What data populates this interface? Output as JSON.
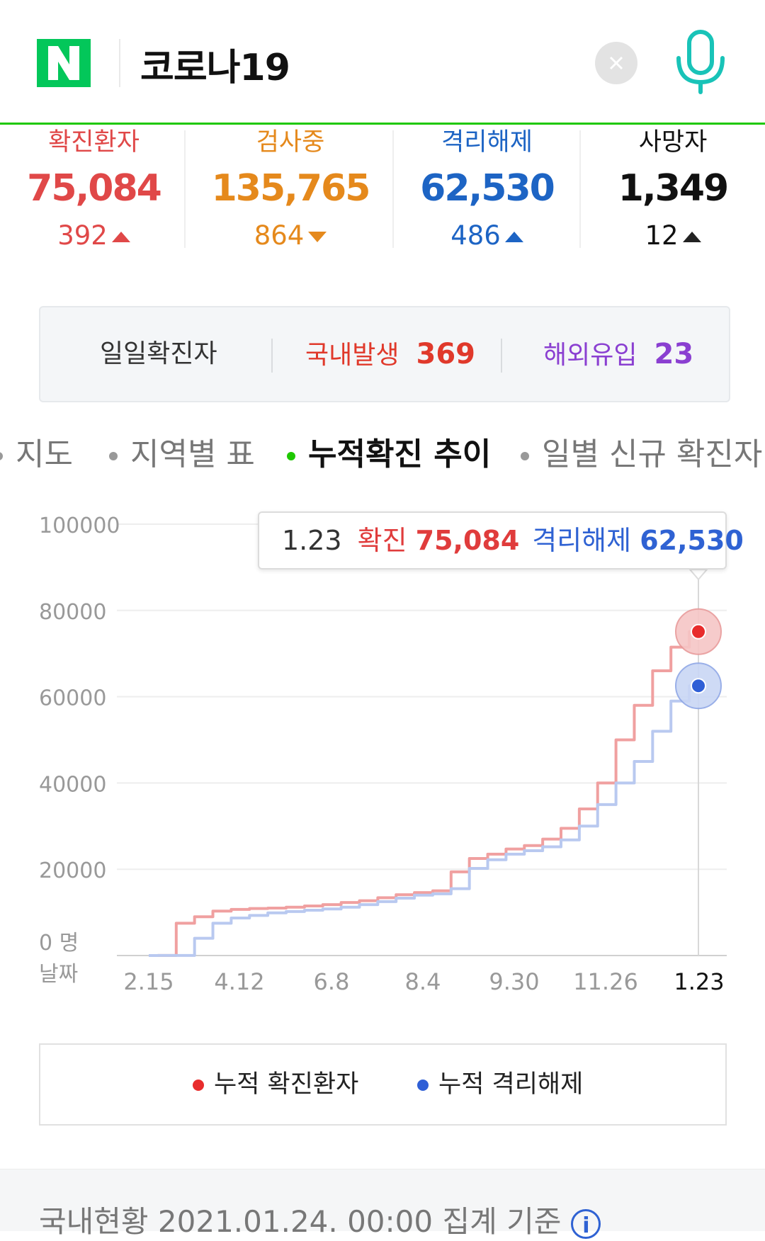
{
  "header": {
    "logo_letter": "N",
    "query": "코로나19",
    "colors": {
      "brand": "#03c75a",
      "mic": "#19c3b8"
    }
  },
  "stats": [
    {
      "label": "확진환자",
      "value": "75,084",
      "change": "392",
      "direction": "up",
      "color": "#e04848"
    },
    {
      "label": "검사중",
      "value": "135,765",
      "change": "864",
      "direction": "down",
      "color": "#e5891c"
    },
    {
      "label": "격리해제",
      "value": "62,530",
      "change": "486",
      "direction": "up",
      "color": "#1d64c4"
    },
    {
      "label": "사망자",
      "value": "1,349",
      "change": "12",
      "direction": "up",
      "color": "#111111"
    }
  ],
  "daily": {
    "label": "일일확진자",
    "domestic_label": "국내발생",
    "domestic_value": "369",
    "overseas_label": "해외유입",
    "overseas_value": "23"
  },
  "tabs": [
    {
      "label": "지도",
      "active": false
    },
    {
      "label": "지역별 표",
      "active": false
    },
    {
      "label": "누적확진 추이",
      "active": true
    },
    {
      "label": "일별 신규 확진자",
      "active": false
    }
  ],
  "tooltip": {
    "date": "1.23",
    "confirmed_label": "확진",
    "confirmed_value": "75,084",
    "released_label": "격리해제",
    "released_value": "62,530"
  },
  "chart_data": {
    "type": "line",
    "y_ticks": [
      "100000",
      "80000",
      "60000",
      "40000",
      "20000",
      "0"
    ],
    "y_unit": "명",
    "x_axis_label": "날짜",
    "x_ticks": [
      "2.15",
      "4.12",
      "6.8",
      "8.4",
      "9.30",
      "11.26",
      "1.23"
    ],
    "ylim": [
      0,
      100000
    ],
    "series": [
      {
        "name": "누적 확진환자",
        "color": "#f0a0a0",
        "values": [
          0,
          30,
          7500,
          9000,
          10300,
          10700,
          10900,
          11000,
          11200,
          11500,
          11800,
          12300,
          12700,
          13400,
          14100,
          14600,
          15000,
          19400,
          22500,
          23500,
          24700,
          25500,
          27000,
          29500,
          34000,
          40000,
          50000,
          58000,
          66000,
          71500,
          75084
        ]
      },
      {
        "name": "누적 격리해제",
        "color": "#b9c9f0",
        "values": [
          0,
          20,
          30,
          4000,
          7500,
          8700,
          9300,
          9900,
          10200,
          10500,
          10800,
          11200,
          11800,
          12500,
          13300,
          14000,
          14300,
          15500,
          20200,
          22200,
          23500,
          24300,
          25200,
          26800,
          30000,
          35000,
          40000,
          45000,
          52000,
          59000,
          62530
        ]
      }
    ],
    "grid": true,
    "legend_position": "bottom"
  },
  "legend": {
    "items": [
      {
        "label": "누적 확진환자",
        "color": "#e82c2c"
      },
      {
        "label": "누적 격리해제",
        "color": "#2f5fd6"
      }
    ]
  },
  "footer": {
    "text": "국내현황 2021.01.24. 00:00 집계 기준",
    "info_icon": "i"
  }
}
